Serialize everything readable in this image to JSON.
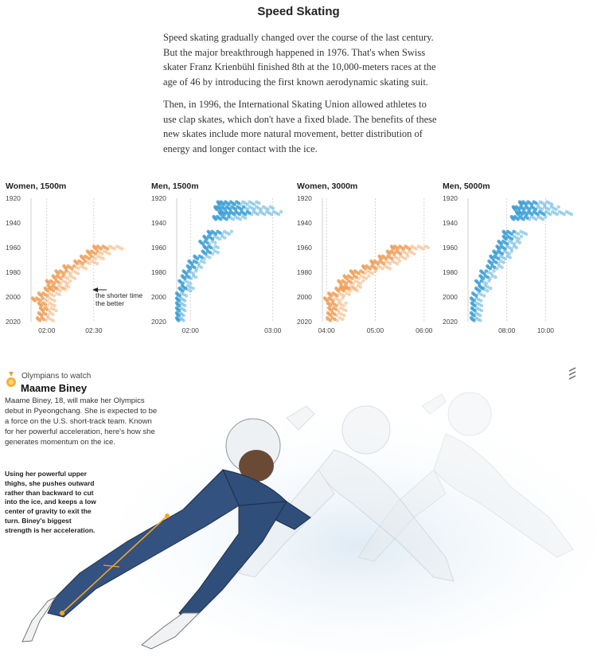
{
  "title": "Speed Skating",
  "intro": {
    "p1": "Speed skating gradually changed over the course of the last century. But the major breakthrough happened in 1976. That's when Swiss skater Franz Krienbühl finished 8th at the 10,000-meters races at the age of 46 by introducing the first known aerodynamic skating suit.",
    "p2": "Then, in 1996, the International Skating Union allowed athletes to use clap skates, which don't have a fixed blade. The benefits of these new skates include more natural movement, better distribution of energy and longer contact with the ice."
  },
  "colors": {
    "women": "#f0a05a",
    "men": "#3a9fd5",
    "suit": "#2f4e7a",
    "accent": "#f5a623"
  },
  "chart_data": [
    {
      "type": "scatter",
      "title": "Women, 1500m",
      "color": "#f0a05a",
      "ylim": [
        1920,
        2020
      ],
      "yticks": [
        "1920",
        "1940",
        "1960",
        "1980",
        "2000",
        "2020"
      ],
      "xlim": [
        110,
        180
      ],
      "xticks": [
        {
          "v": 120,
          "label": "02:00"
        },
        {
          "v": 150,
          "label": "02:30"
        }
      ],
      "annotation": {
        "line1": "the shorter time",
        "line2": "the better"
      },
      "series": [
        {
          "year": 1960,
          "min": 150,
          "max": 168
        },
        {
          "year": 1964,
          "min": 146,
          "max": 160
        },
        {
          "year": 1968,
          "min": 142,
          "max": 156
        },
        {
          "year": 1972,
          "min": 138,
          "max": 152
        },
        {
          "year": 1976,
          "min": 131,
          "max": 145
        },
        {
          "year": 1980,
          "min": 126,
          "max": 140
        },
        {
          "year": 1984,
          "min": 124,
          "max": 138
        },
        {
          "year": 1988,
          "min": 120,
          "max": 135
        },
        {
          "year": 1992,
          "min": 121,
          "max": 134
        },
        {
          "year": 1994,
          "min": 119,
          "max": 132
        },
        {
          "year": 1998,
          "min": 115,
          "max": 128
        },
        {
          "year": 2002,
          "min": 111,
          "max": 125
        },
        {
          "year": 2006,
          "min": 115,
          "max": 125
        },
        {
          "year": 2010,
          "min": 116,
          "max": 126
        },
        {
          "year": 2014,
          "min": 115,
          "max": 124
        },
        {
          "year": 2018,
          "min": 114,
          "max": 124
        }
      ]
    },
    {
      "type": "scatter",
      "title": "Men, 1500m",
      "color": "#3a9fd5",
      "ylim": [
        1920,
        2020
      ],
      "yticks": [
        "1920",
        "1940",
        "1960",
        "1980",
        "2000",
        "2020"
      ],
      "xlim": [
        110,
        190
      ],
      "xticks": [
        {
          "v": 120,
          "label": "02:00"
        },
        {
          "v": 180,
          "label": "03:00"
        }
      ],
      "series": [
        {
          "year": 1924,
          "min": 140,
          "max": 170
        },
        {
          "year": 1928,
          "min": 138,
          "max": 180
        },
        {
          "year": 1932,
          "min": 141,
          "max": 186
        },
        {
          "year": 1936,
          "min": 137,
          "max": 160
        },
        {
          "year": 1948,
          "min": 133,
          "max": 150
        },
        {
          "year": 1952,
          "min": 130,
          "max": 145
        },
        {
          "year": 1956,
          "min": 127,
          "max": 138
        },
        {
          "year": 1960,
          "min": 130,
          "max": 140
        },
        {
          "year": 1964,
          "min": 129,
          "max": 140
        },
        {
          "year": 1968,
          "min": 123,
          "max": 134
        },
        {
          "year": 1972,
          "min": 119,
          "max": 130
        },
        {
          "year": 1976,
          "min": 118,
          "max": 128
        },
        {
          "year": 1980,
          "min": 115,
          "max": 124
        },
        {
          "year": 1984,
          "min": 114,
          "max": 124
        },
        {
          "year": 1988,
          "min": 112,
          "max": 120
        },
        {
          "year": 1992,
          "min": 114,
          "max": 122
        },
        {
          "year": 1994,
          "min": 112,
          "max": 120
        },
        {
          "year": 1998,
          "min": 110,
          "max": 117
        },
        {
          "year": 2002,
          "min": 110,
          "max": 116
        },
        {
          "year": 2006,
          "min": 110,
          "max": 116
        },
        {
          "year": 2010,
          "min": 110,
          "max": 116
        },
        {
          "year": 2014,
          "min": 110,
          "max": 115
        },
        {
          "year": 2018,
          "min": 110,
          "max": 115
        }
      ]
    },
    {
      "type": "scatter",
      "title": "Women, 3000m",
      "color": "#f0a05a",
      "ylim": [
        1920,
        2020
      ],
      "yticks": [
        "1920",
        "1940",
        "1960",
        "1980",
        "2000",
        "2020"
      ],
      "xlim": [
        235,
        370
      ],
      "xticks": [
        {
          "v": 240,
          "label": "04:00"
        },
        {
          "v": 300,
          "label": "05:00"
        },
        {
          "v": 360,
          "label": "06:00"
        }
      ],
      "series": [
        {
          "year": 1960,
          "min": 320,
          "max": 365
        },
        {
          "year": 1964,
          "min": 315,
          "max": 348
        },
        {
          "year": 1968,
          "min": 305,
          "max": 340
        },
        {
          "year": 1972,
          "min": 295,
          "max": 330
        },
        {
          "year": 1976,
          "min": 285,
          "max": 318
        },
        {
          "year": 1980,
          "min": 270,
          "max": 300
        },
        {
          "year": 1984,
          "min": 262,
          "max": 292
        },
        {
          "year": 1988,
          "min": 255,
          "max": 285
        },
        {
          "year": 1992,
          "min": 258,
          "max": 282
        },
        {
          "year": 1994,
          "min": 252,
          "max": 278
        },
        {
          "year": 1998,
          "min": 243,
          "max": 268
        },
        {
          "year": 2002,
          "min": 238,
          "max": 260
        },
        {
          "year": 2006,
          "min": 242,
          "max": 264
        },
        {
          "year": 2010,
          "min": 243,
          "max": 264
        },
        {
          "year": 2014,
          "min": 242,
          "max": 262
        },
        {
          "year": 2018,
          "min": 241,
          "max": 260
        }
      ]
    },
    {
      "type": "scatter",
      "title": "Men, 5000m",
      "color": "#3a9fd5",
      "ylim": [
        1920,
        2020
      ],
      "yticks": [
        "1920",
        "1940",
        "1960",
        "1980",
        "2000",
        "2020"
      ],
      "xlim": [
        360,
        700
      ],
      "xticks": [
        {
          "v": 480,
          "label": "08:00"
        },
        {
          "v": 600,
          "label": "10:00"
        }
      ],
      "series": [
        {
          "year": 1924,
          "min": 520,
          "max": 620
        },
        {
          "year": 1928,
          "min": 500,
          "max": 640
        },
        {
          "year": 1932,
          "min": 510,
          "max": 680
        },
        {
          "year": 1936,
          "min": 495,
          "max": 600
        },
        {
          "year": 1948,
          "min": 470,
          "max": 540
        },
        {
          "year": 1952,
          "min": 470,
          "max": 525
        },
        {
          "year": 1956,
          "min": 455,
          "max": 520
        },
        {
          "year": 1960,
          "min": 450,
          "max": 510
        },
        {
          "year": 1964,
          "min": 440,
          "max": 495
        },
        {
          "year": 1968,
          "min": 430,
          "max": 490
        },
        {
          "year": 1972,
          "min": 425,
          "max": 470
        },
        {
          "year": 1976,
          "min": 420,
          "max": 465
        },
        {
          "year": 1980,
          "min": 400,
          "max": 440
        },
        {
          "year": 1984,
          "min": 398,
          "max": 445
        },
        {
          "year": 1988,
          "min": 385,
          "max": 425
        },
        {
          "year": 1992,
          "min": 395,
          "max": 430
        },
        {
          "year": 1994,
          "min": 385,
          "max": 420
        },
        {
          "year": 1998,
          "min": 375,
          "max": 410
        },
        {
          "year": 2002,
          "min": 370,
          "max": 400
        },
        {
          "year": 2006,
          "min": 372,
          "max": 402
        },
        {
          "year": 2010,
          "min": 372,
          "max": 402
        },
        {
          "year": 2014,
          "min": 370,
          "max": 398
        },
        {
          "year": 2018,
          "min": 370,
          "max": 398
        }
      ]
    }
  ],
  "athlete": {
    "kicker": "Olympians to watch",
    "name": "Maame Biney",
    "bio": "Maame Biney, 18, will make her Olympics debut in Pyeongchang. She is expected to be a force on the U.S. short-track team. Known for her powerful acceleration, here's how she generates momentum on the ice.",
    "technique": "Using her powerful upper thighs, she pushes outward rather than backward to cut into the ice, and keeps a low center of gravity to exit the turn. Biney's biggest strength is her acceleration."
  },
  "icons": {
    "medal": "medal-icon",
    "menu": "menu-icon"
  }
}
